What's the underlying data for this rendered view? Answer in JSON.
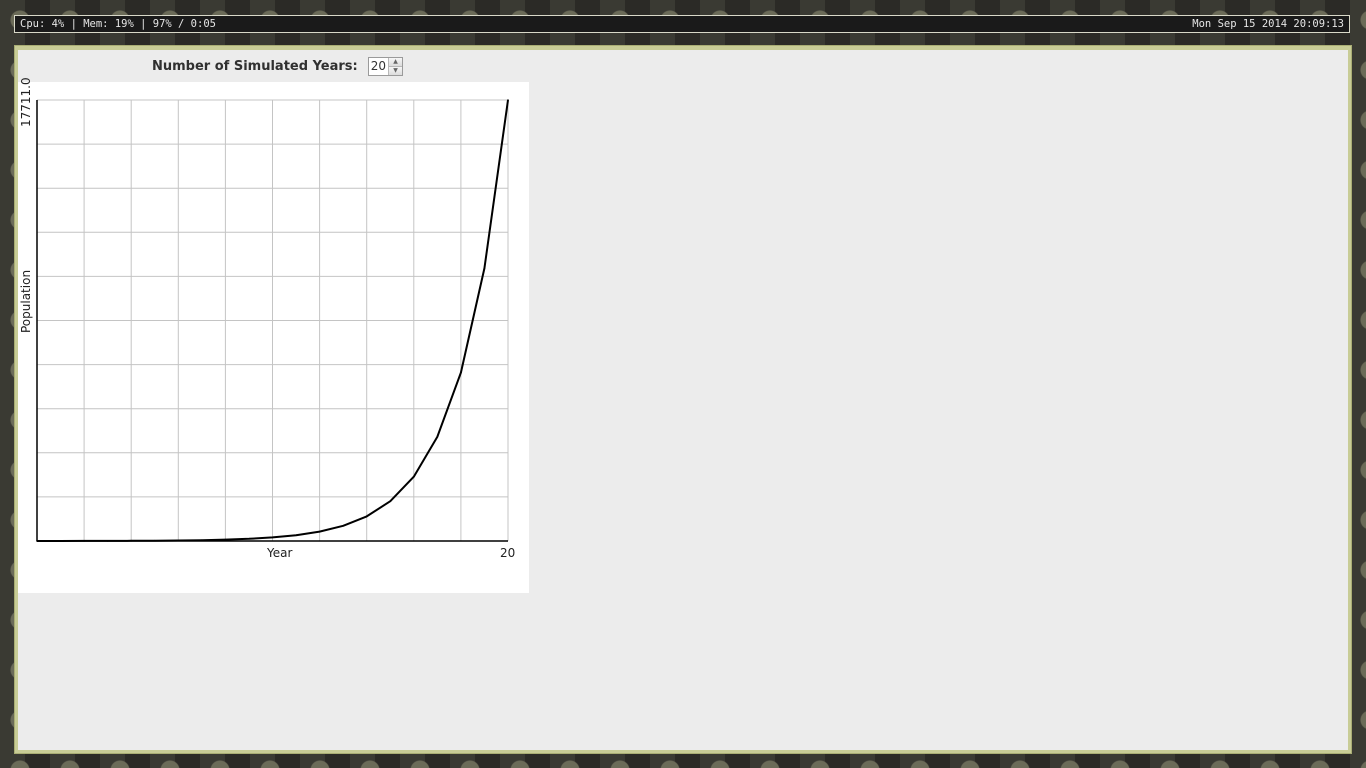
{
  "statusbar": {
    "left_text": "Cpu: 4% | Mem: 19% | 97% / 0:05",
    "right_text": "Mon Sep 15 2014 20:09:13"
  },
  "controls": {
    "years_label": "Number of Simulated Years:",
    "years_value": "20"
  },
  "chart_data": {
    "type": "line",
    "xlabel": "Year",
    "ylabel": "Population",
    "x_max_label": "20",
    "y_max_label": "17711.0",
    "xlim": [
      0,
      20
    ],
    "ylim": [
      0,
      17711
    ],
    "grid": true,
    "x": [
      0,
      1,
      2,
      3,
      4,
      5,
      6,
      7,
      8,
      9,
      10,
      11,
      12,
      13,
      14,
      15,
      16,
      17,
      18,
      19,
      20
    ],
    "series": [
      {
        "values": [
          1,
          2,
          3,
          5,
          8,
          13,
          21,
          34,
          55,
          89,
          144,
          233,
          377,
          610,
          987,
          1597,
          2584,
          4181,
          6765,
          10946,
          17711
        ],
        "color": "#000000"
      }
    ]
  }
}
